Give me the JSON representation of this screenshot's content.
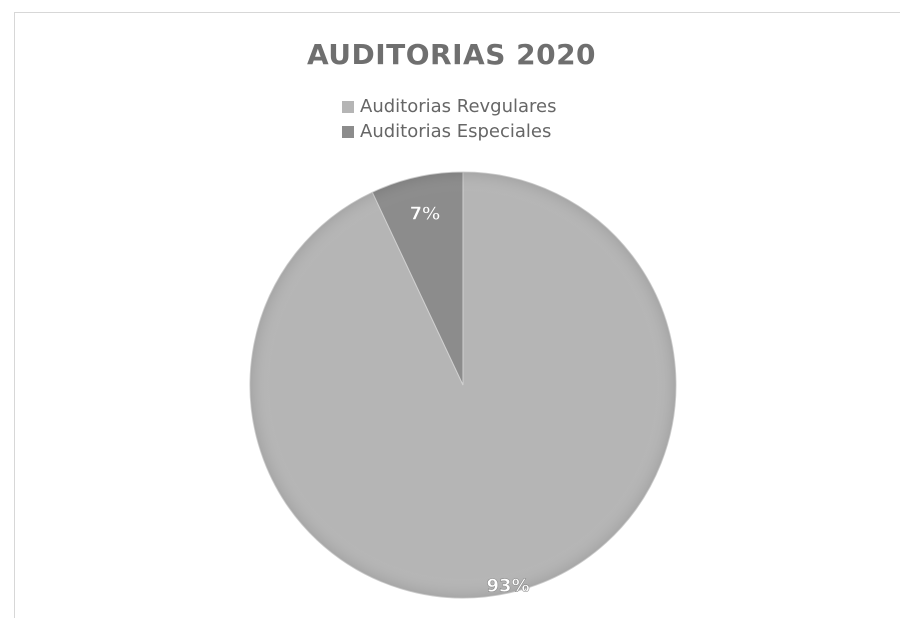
{
  "chart_data": {
    "type": "pie",
    "title": "AUDITORIAS 2020",
    "legend_position": "top",
    "categories": [
      "Auditorias Revgulares",
      "Auditorias Especiales"
    ],
    "values": [
      93,
      7
    ],
    "labels": [
      "93%",
      "7%"
    ],
    "colors": [
      "#b5b5b5",
      "#8c8c8c"
    ]
  }
}
